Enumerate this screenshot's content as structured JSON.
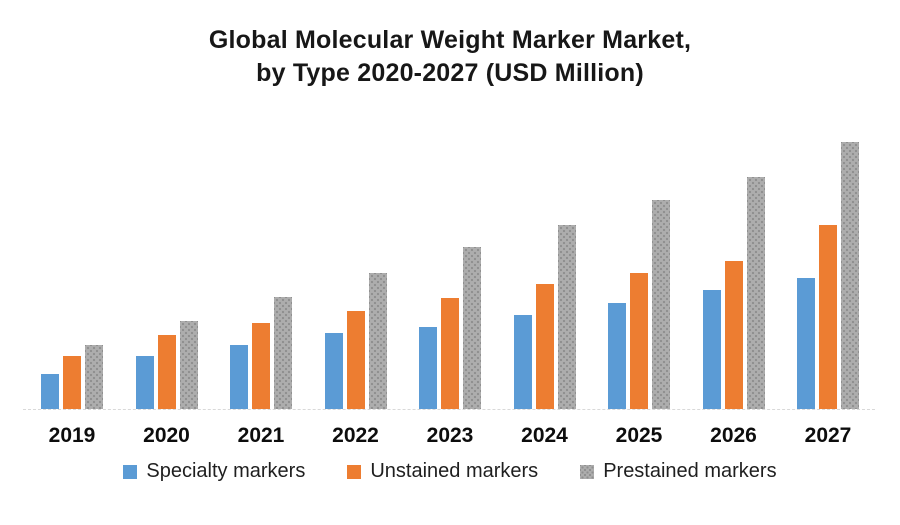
{
  "title": {
    "line1": "Global Molecular Weight Marker Market,",
    "line2": "by Type 2020-2027 (USD Million)"
  },
  "chart_data": {
    "type": "bar",
    "title": "Global Molecular Weight Marker Market, by Type 2020-2027 (USD Million)",
    "categories": [
      "2019",
      "2020",
      "2021",
      "2022",
      "2023",
      "2024",
      "2025",
      "2026",
      "2027"
    ],
    "series": [
      {
        "id": "specialty",
        "name": "Specialty markers",
        "color": "#5b9bd5",
        "pattern": "solid",
        "values": [
          13.2,
          19.9,
          24.1,
          28.6,
          30.8,
          35.3,
          39.8,
          44.4,
          48.9
        ]
      },
      {
        "id": "unstained",
        "name": "Unstained markers",
        "color": "#ed7d31",
        "pattern": "solid",
        "values": [
          19.9,
          27.8,
          32.3,
          36.8,
          41.7,
          47.0,
          51.1,
          55.6,
          68.8
        ]
      },
      {
        "id": "prestained",
        "name": "Prestained markers",
        "color": "#adadad",
        "pattern": "dot-texture",
        "pattern_dot_color": "#8f8f8f",
        "values": [
          24.1,
          33.1,
          42.1,
          51.1,
          60.5,
          68.8,
          78.2,
          86.8,
          100.0
        ]
      }
    ],
    "ylim": [
      0,
      112
    ],
    "xlabel": "",
    "ylabel": "",
    "y_axis_visible": false,
    "gridlines": false,
    "legend_position": "bottom",
    "axis_line_color": "#d9d9d9",
    "note": "No y-axis, gridlines, or data labels are shown in the chart; series values are relative bar heights normalized so the tallest bar (Prestained markers, 2027) equals 100."
  }
}
